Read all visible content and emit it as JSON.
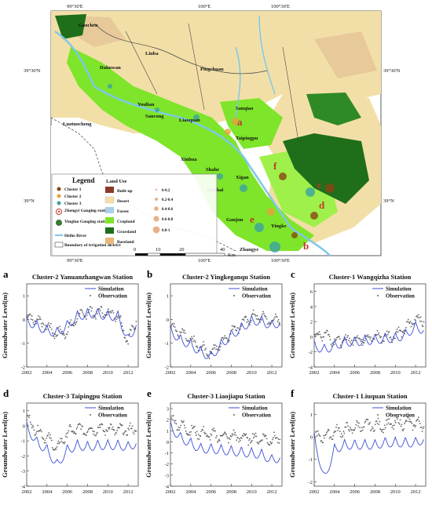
{
  "map": {
    "lon_labels_top": [
      "99°30'E",
      "100°E",
      "100°30'E"
    ],
    "lon_labels_bottom": [
      "99°30'E",
      "100°E",
      "100°30'E"
    ],
    "lat_labels_left": [
      "39°30'N",
      "39°N"
    ],
    "lat_labels_right": [
      "39°30'N",
      "39°N"
    ],
    "places": [
      "Gaochen",
      "Liuba",
      "Pingchuan",
      "Dahuwan",
      "Youlian",
      "Sanqiao",
      "Sancong",
      "Luotuocheng",
      "Liaoquan",
      "Xinhua",
      "Shahe",
      "Xigan",
      "Xiazhai",
      "Ganjun",
      "Yingke",
      "Zhangye",
      "Taipingpu"
    ],
    "panel_markers": [
      "a",
      "b",
      "c",
      "d",
      "e",
      "f"
    ],
    "legend": {
      "title": "Legend",
      "clusters_title": "",
      "clusters": [
        {
          "label": "Cluster 1",
          "color": "#8b4513"
        },
        {
          "label": "Cluster 2",
          "color": "#e8a040"
        },
        {
          "label": "Cluster 3",
          "color": "#3aa3a3"
        }
      ],
      "stations": [
        {
          "label": "Zhengyi Gauging station"
        },
        {
          "label": "Yingluo Gauging station"
        }
      ],
      "lines": [
        {
          "label": "Heihe River"
        },
        {
          "label": "Boundary of irrigation district"
        }
      ],
      "landuse_title": "Land Use",
      "landuse": [
        {
          "label": "Built-up",
          "color": "#8b3a2a"
        },
        {
          "label": "Desert",
          "color": "#f2dfa7"
        },
        {
          "label": "Forest",
          "color": "#a9d0ea"
        },
        {
          "label": "Cropland",
          "color": "#7ee52a"
        },
        {
          "label": "Grassland",
          "color": "#1f6e1a"
        },
        {
          "label": "Bareland",
          "color": "#e8b87a"
        }
      ],
      "sizes": [
        "0-0.2",
        "0.2-0.4",
        "0.4-0.6",
        "0.6-0.8",
        "0.8-1"
      ]
    },
    "scale": {
      "ticks": [
        "0",
        "10",
        "20",
        "40"
      ],
      "unit": "Km"
    }
  },
  "chart_data": [
    {
      "type": "line",
      "letter": "a",
      "title": "Cluster-2 Yanuanzhangwan Station",
      "ylabel": "Groundwater Level(m)",
      "x": [
        2002,
        2003,
        2004,
        2005,
        2006,
        2007,
        2008,
        2009,
        2010,
        2011,
        2012,
        2013
      ],
      "xticks": [
        "2002",
        "2004",
        "2006",
        "2008",
        "2010",
        "2012"
      ],
      "yticks": [
        "-2",
        "-1",
        "0",
        "1"
      ],
      "ylim": [
        -2,
        1.5
      ],
      "series": [
        {
          "name": "Simulation",
          "values": [
            0.0,
            -0.2,
            -0.4,
            -0.5,
            -0.2,
            0.2,
            0.3,
            0.3,
            0.2,
            0.2,
            -0.8,
            0.0
          ]
        },
        {
          "name": "Observation",
          "values": [
            0.1,
            0.0,
            -0.3,
            -0.6,
            -0.5,
            0.1,
            0.3,
            0.3,
            0.3,
            0.2,
            -0.9,
            0.2
          ]
        }
      ]
    },
    {
      "type": "line",
      "letter": "b",
      "title": "Cluster-2 Yingkeganqu Station",
      "ylabel": "Groundwater Level(m)",
      "x": [
        2002,
        2003,
        2004,
        2005,
        2006,
        2007,
        2008,
        2009,
        2010,
        2011,
        2012,
        2013
      ],
      "xticks": [
        "2002",
        "2004",
        "2006",
        "2008",
        "2010",
        "2012"
      ],
      "yticks": [
        "-2",
        "-1",
        "0",
        "1"
      ],
      "ylim": [
        -2,
        1.5
      ],
      "series": [
        {
          "name": "Simulation",
          "values": [
            -0.4,
            -0.8,
            -1.0,
            -1.3,
            -1.5,
            -1.0,
            -0.6,
            -0.3,
            0.0,
            0.0,
            -0.2,
            0.0
          ]
        },
        {
          "name": "Observation",
          "values": [
            -0.2,
            -0.6,
            -0.9,
            -1.2,
            -1.4,
            -1.0,
            -0.5,
            -0.2,
            0.1,
            0.1,
            -0.1,
            0.1
          ]
        }
      ]
    },
    {
      "type": "line",
      "letter": "c",
      "title": "Cluster-1 Wangqizha Station",
      "ylabel": "Groundwater Level(m)",
      "x": [
        2002,
        2003,
        2004,
        2005,
        2006,
        2007,
        2008,
        2009,
        2010,
        2011,
        2012,
        2013
      ],
      "xticks": [
        "2002",
        "2004",
        "2006",
        "2008",
        "2010",
        "2012"
      ],
      "yticks": [
        "-4",
        "-2",
        "0",
        "2",
        "4",
        "6"
      ],
      "ylim": [
        -4,
        7
      ],
      "series": [
        {
          "name": "Simulation",
          "values": [
            -1.0,
            -1.5,
            -1.0,
            -0.5,
            -0.5,
            -0.3,
            -0.2,
            0.0,
            0.0,
            0.5,
            1.5,
            1.0
          ]
        },
        {
          "name": "Observation",
          "values": [
            0.0,
            0.5,
            -0.5,
            -0.5,
            -0.3,
            -0.2,
            0.0,
            0.0,
            0.3,
            1.0,
            2.5,
            2.0
          ]
        }
      ]
    },
    {
      "type": "line",
      "letter": "d",
      "title": "Cluster-3 Taipingpu Station",
      "ylabel": "Groundwater Level(m)",
      "x": [
        2002,
        2003,
        2004,
        2005,
        2006,
        2007,
        2008,
        2009,
        2010,
        2011,
        2012,
        2013
      ],
      "xticks": [
        "2002",
        "2004",
        "2006",
        "2008",
        "2010",
        "2012"
      ],
      "yticks": [
        "-4",
        "-3",
        "-2",
        "-1",
        "0",
        "1"
      ],
      "ylim": [
        -4,
        1.5
      ],
      "series": [
        {
          "name": "Simulation",
          "values": [
            0.0,
            -1.0,
            -1.5,
            -2.5,
            -1.5,
            -1.2,
            -1.3,
            -1.2,
            -1.2,
            -1.2,
            -1.3,
            -1.0
          ]
        },
        {
          "name": "Observation",
          "values": [
            0.5,
            -0.3,
            -0.8,
            -1.5,
            -0.5,
            -0.2,
            -0.3,
            -0.2,
            -0.2,
            -0.3,
            -0.3,
            -0.2
          ]
        }
      ]
    },
    {
      "type": "line",
      "letter": "e",
      "title": "Cluster-3 Liaojiapu Station",
      "ylabel": "Groundwater Level(m)",
      "x": [
        2002,
        2003,
        2004,
        2005,
        2006,
        2007,
        2008,
        2009,
        2010,
        2011,
        2012,
        2013
      ],
      "xticks": [
        "2002",
        "2004",
        "2006",
        "2008",
        "2010",
        "2012"
      ],
      "yticks": [
        "-4",
        "-3",
        "-2",
        "-1",
        "0",
        "1",
        "2",
        "3"
      ],
      "ylim": [
        -4,
        3.5
      ],
      "series": [
        {
          "name": "Simulation",
          "values": [
            1.5,
            0.5,
            0.0,
            -0.5,
            -0.5,
            -0.6,
            -0.7,
            -0.8,
            -0.9,
            -1.0,
            -1.5,
            -1.2
          ]
        },
        {
          "name": "Observation",
          "values": [
            2.0,
            1.5,
            1.0,
            0.8,
            0.6,
            0.5,
            0.5,
            0.4,
            0.3,
            0.3,
            0.2,
            0.3
          ]
        }
      ]
    },
    {
      "type": "line",
      "letter": "f",
      "title": "Cluster-1 Liuquan Station",
      "ylabel": "Groundwater Level(m)",
      "x": [
        2002,
        2003,
        2004,
        2005,
        2006,
        2007,
        2008,
        2009,
        2010,
        2011,
        2012,
        2013
      ],
      "xticks": [
        "2002",
        "2004",
        "2006",
        "2008",
        "2010",
        "2012"
      ],
      "yticks": [
        "-2",
        "-1",
        "0",
        "1"
      ],
      "ylim": [
        -2.2,
        1.5
      ],
      "series": [
        {
          "name": "Simulation",
          "values": [
            0.0,
            -1.8,
            -0.5,
            -0.3,
            -0.3,
            -0.3,
            -0.3,
            -0.2,
            -0.2,
            -0.2,
            -0.2,
            0.0
          ]
        },
        {
          "name": "Observation",
          "values": [
            0.0,
            0.0,
            0.2,
            0.3,
            0.4,
            0.5,
            0.5,
            0.5,
            0.6,
            0.6,
            0.6,
            0.5
          ]
        }
      ]
    }
  ]
}
